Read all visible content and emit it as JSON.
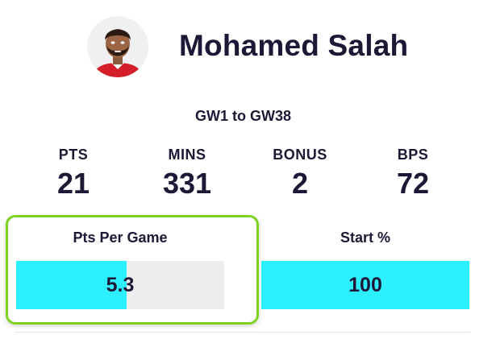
{
  "player": {
    "name": "Mohamed Salah",
    "avatar_icon": "player-avatar-icon"
  },
  "range": "GW1 to GW38",
  "stats": [
    {
      "label": "PTS",
      "value": "21"
    },
    {
      "label": "MINS",
      "value": "331"
    },
    {
      "label": "BONUS",
      "value": "2"
    },
    {
      "label": "BPS",
      "value": "72"
    }
  ],
  "metrics": [
    {
      "label": "Pts Per Game",
      "value": "5.3",
      "fill_fraction": 0.53
    },
    {
      "label": "Start %",
      "value": "100",
      "fill_fraction": 1.0
    }
  ],
  "colors": {
    "text": "#1f1736",
    "bar_fill": "#2cf0ff",
    "bar_track": "#ededed",
    "highlight_border": "#7ed321"
  }
}
